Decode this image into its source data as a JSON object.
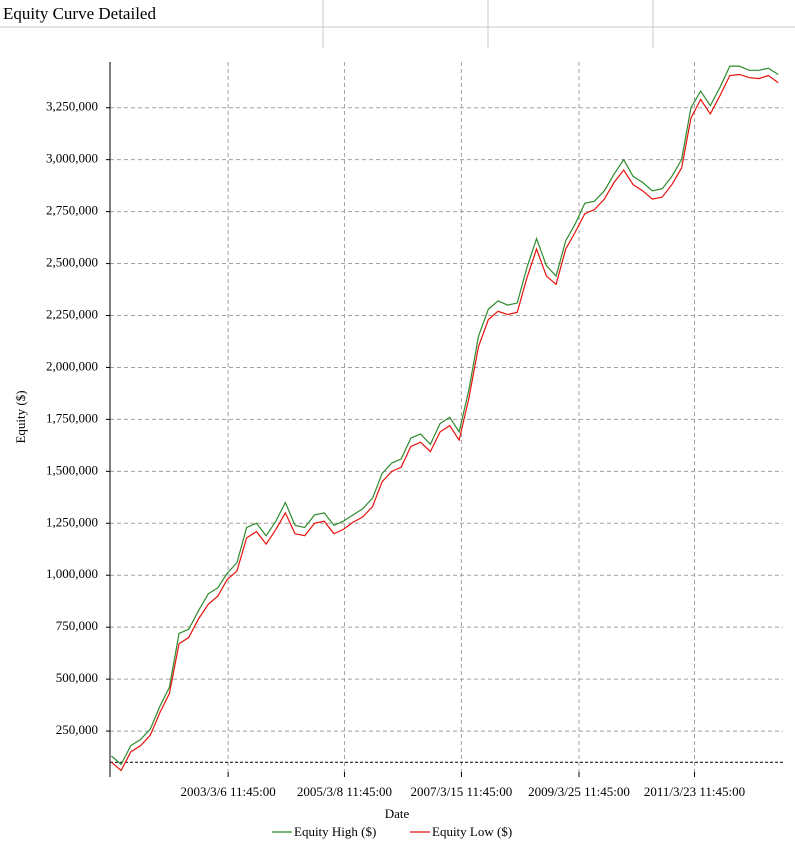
{
  "chart_data": {
    "type": "line",
    "title": "Equity Curve Detailed",
    "x_label": "Date",
    "y_label": "Equity ($)",
    "x": [
      "2001/3/1",
      "2001/5/1",
      "2001/7/1",
      "2001/9/1",
      "2001/11/1",
      "2002/1/1",
      "2002/3/1",
      "2002/5/1",
      "2002/7/1",
      "2002/9/1",
      "2002/11/1",
      "2003/1/1",
      "2003/3/1",
      "2003/5/1",
      "2003/7/1",
      "2003/9/1",
      "2003/11/1",
      "2004/1/1",
      "2004/3/1",
      "2004/5/1",
      "2004/7/1",
      "2004/9/1",
      "2004/11/1",
      "2005/1/1",
      "2005/3/1",
      "2005/5/1",
      "2005/7/1",
      "2005/9/1",
      "2005/11/1",
      "2006/1/1",
      "2006/3/1",
      "2006/5/1",
      "2006/7/1",
      "2006/9/1",
      "2006/11/1",
      "2007/1/1",
      "2007/3/1",
      "2007/5/1",
      "2007/7/1",
      "2007/9/1",
      "2007/11/1",
      "2008/1/1",
      "2008/3/1",
      "2008/5/1",
      "2008/7/1",
      "2008/9/1",
      "2008/11/1",
      "2009/1/1",
      "2009/3/1",
      "2009/5/1",
      "2009/7/1",
      "2009/9/1",
      "2009/11/1",
      "2010/1/1",
      "2010/3/1",
      "2010/5/1",
      "2010/7/1",
      "2010/9/1",
      "2010/11/1",
      "2011/1/1",
      "2011/3/1",
      "2011/5/1",
      "2011/7/1",
      "2011/9/1",
      "2011/11/1",
      "2012/1/1",
      "2012/3/1",
      "2012/5/1",
      "2012/7/1",
      "2012/9/1"
    ],
    "series": [
      {
        "name": "Equity High ($)",
        "color": "#2e8b2e",
        "values": [
          130000,
          90000,
          180000,
          210000,
          260000,
          370000,
          460000,
          720000,
          740000,
          830000,
          910000,
          940000,
          1010000,
          1060000,
          1230000,
          1250000,
          1190000,
          1260000,
          1350000,
          1240000,
          1230000,
          1290000,
          1300000,
          1240000,
          1260000,
          1290000,
          1320000,
          1370000,
          1490000,
          1540000,
          1560000,
          1660000,
          1680000,
          1630000,
          1730000,
          1760000,
          1690000,
          1890000,
          2150000,
          2280000,
          2320000,
          2300000,
          2310000,
          2480000,
          2620000,
          2490000,
          2440000,
          2610000,
          2690000,
          2790000,
          2800000,
          2850000,
          2930000,
          3000000,
          2920000,
          2890000,
          2850000,
          2860000,
          2920000,
          3000000,
          3250000,
          3330000,
          3260000,
          3350000,
          3450000,
          3450000,
          3430000,
          3430000,
          3440000,
          3410000
        ]
      },
      {
        "name": "Equity Low ($)",
        "color": "#e8120c",
        "values": [
          100000,
          60000,
          150000,
          180000,
          230000,
          340000,
          430000,
          670000,
          700000,
          790000,
          860000,
          900000,
          980000,
          1020000,
          1180000,
          1210000,
          1150000,
          1220000,
          1300000,
          1200000,
          1190000,
          1250000,
          1260000,
          1200000,
          1220000,
          1255000,
          1280000,
          1330000,
          1450000,
          1500000,
          1520000,
          1620000,
          1640000,
          1595000,
          1690000,
          1720000,
          1650000,
          1850000,
          2100000,
          2230000,
          2270000,
          2255000,
          2265000,
          2430000,
          2570000,
          2440000,
          2400000,
          2570000,
          2650000,
          2740000,
          2760000,
          2810000,
          2890000,
          2950000,
          2880000,
          2850000,
          2810000,
          2820000,
          2880000,
          2960000,
          3200000,
          3290000,
          3220000,
          3310000,
          3405000,
          3410000,
          3395000,
          3390000,
          3405000,
          3370000
        ]
      }
    ],
    "initial_equity": 100000,
    "xlim": [
      "2001/2/20",
      "2012/10/1"
    ],
    "xticks": [
      "2003/3/6 11:45:00",
      "2005/3/8 11:45:00",
      "2007/3/15 11:45:00",
      "2009/3/25 11:45:00",
      "2011/3/23 11:45:00"
    ],
    "ylim": [
      53000,
      3470000
    ],
    "yticks": [
      {
        "value": 250000,
        "label": "250,000"
      },
      {
        "value": 500000,
        "label": "500,000"
      },
      {
        "value": 750000,
        "label": "750,000"
      },
      {
        "value": 1000000,
        "label": "1,000,000"
      },
      {
        "value": 1250000,
        "label": "1,250,000"
      },
      {
        "value": 1500000,
        "label": "1,500,000"
      },
      {
        "value": 1750000,
        "label": "1,750,000"
      },
      {
        "value": 2000000,
        "label": "2,000,000"
      },
      {
        "value": 2250000,
        "label": "2,250,000"
      },
      {
        "value": 2500000,
        "label": "2,500,000"
      },
      {
        "value": 2750000,
        "label": "2,750,000"
      },
      {
        "value": 3000000,
        "label": "3,000,000"
      },
      {
        "value": 3250000,
        "label": "3,250,000"
      }
    ],
    "grid": true
  }
}
